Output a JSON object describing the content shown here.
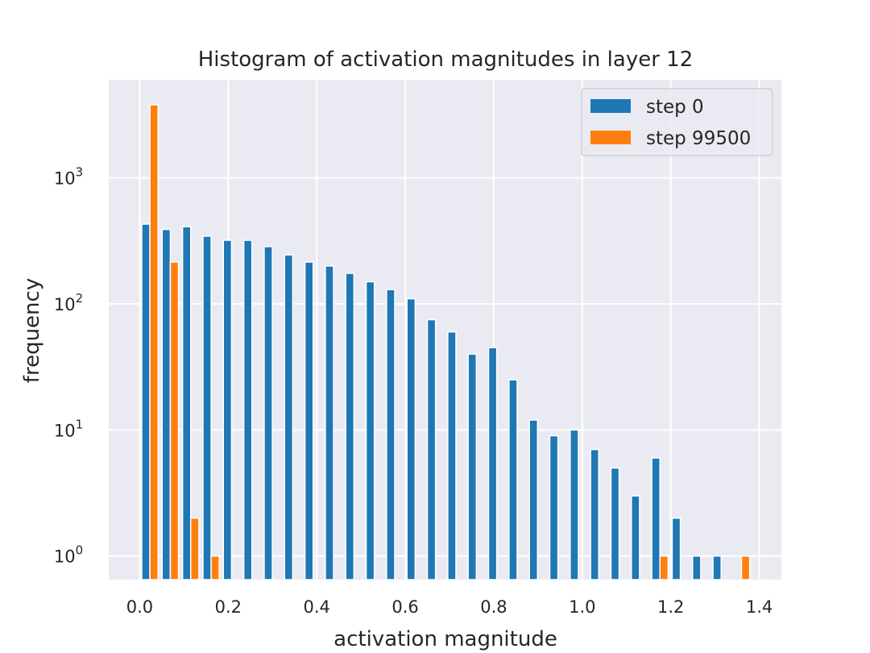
{
  "chart_data": {
    "type": "bar",
    "title": "Histogram of activation magnitudes in layer 12",
    "xlabel": "activation magnitude",
    "ylabel": "frequency",
    "xlim": [
      -0.07,
      1.45
    ],
    "ylim": [
      0.65,
      6000
    ],
    "yscale": "log",
    "grid": true,
    "legend_position": "top-right",
    "x_ticks": [
      {
        "value": 0.0,
        "label": "0.0"
      },
      {
        "value": 0.2,
        "label": "0.2"
      },
      {
        "value": 0.4,
        "label": "0.4"
      },
      {
        "value": 0.6,
        "label": "0.6"
      },
      {
        "value": 0.8,
        "label": "0.8"
      },
      {
        "value": 1.0,
        "label": "1.0"
      },
      {
        "value": 1.2,
        "label": "1.2"
      },
      {
        "value": 1.4,
        "label": "1.4"
      }
    ],
    "y_ticks": [
      {
        "value": 1,
        "base": "10",
        "exp": "0"
      },
      {
        "value": 10,
        "base": "10",
        "exp": "1"
      },
      {
        "value": 100,
        "base": "10",
        "exp": "2"
      },
      {
        "value": 1000,
        "base": "10",
        "exp": "3"
      }
    ],
    "bin_width": 0.0461,
    "bin_start": 0.0,
    "series": [
      {
        "name": "step 0",
        "color": "#1f77b4",
        "values": [
          430,
          390,
          410,
          345,
          320,
          320,
          285,
          245,
          215,
          200,
          175,
          150,
          130,
          110,
          75,
          60,
          40,
          45,
          25,
          12,
          9,
          10,
          7,
          5,
          3,
          6,
          2,
          1,
          1,
          0,
          0
        ]
      },
      {
        "name": "step 99500",
        "color": "#ff7f0e",
        "values": [
          3800,
          215,
          2,
          1,
          0,
          0,
          0,
          0,
          0,
          0,
          0,
          0,
          0,
          0,
          0,
          0,
          0,
          0,
          0,
          0,
          0,
          0,
          0,
          0,
          0,
          1,
          0,
          0,
          0,
          1,
          0
        ]
      }
    ]
  }
}
